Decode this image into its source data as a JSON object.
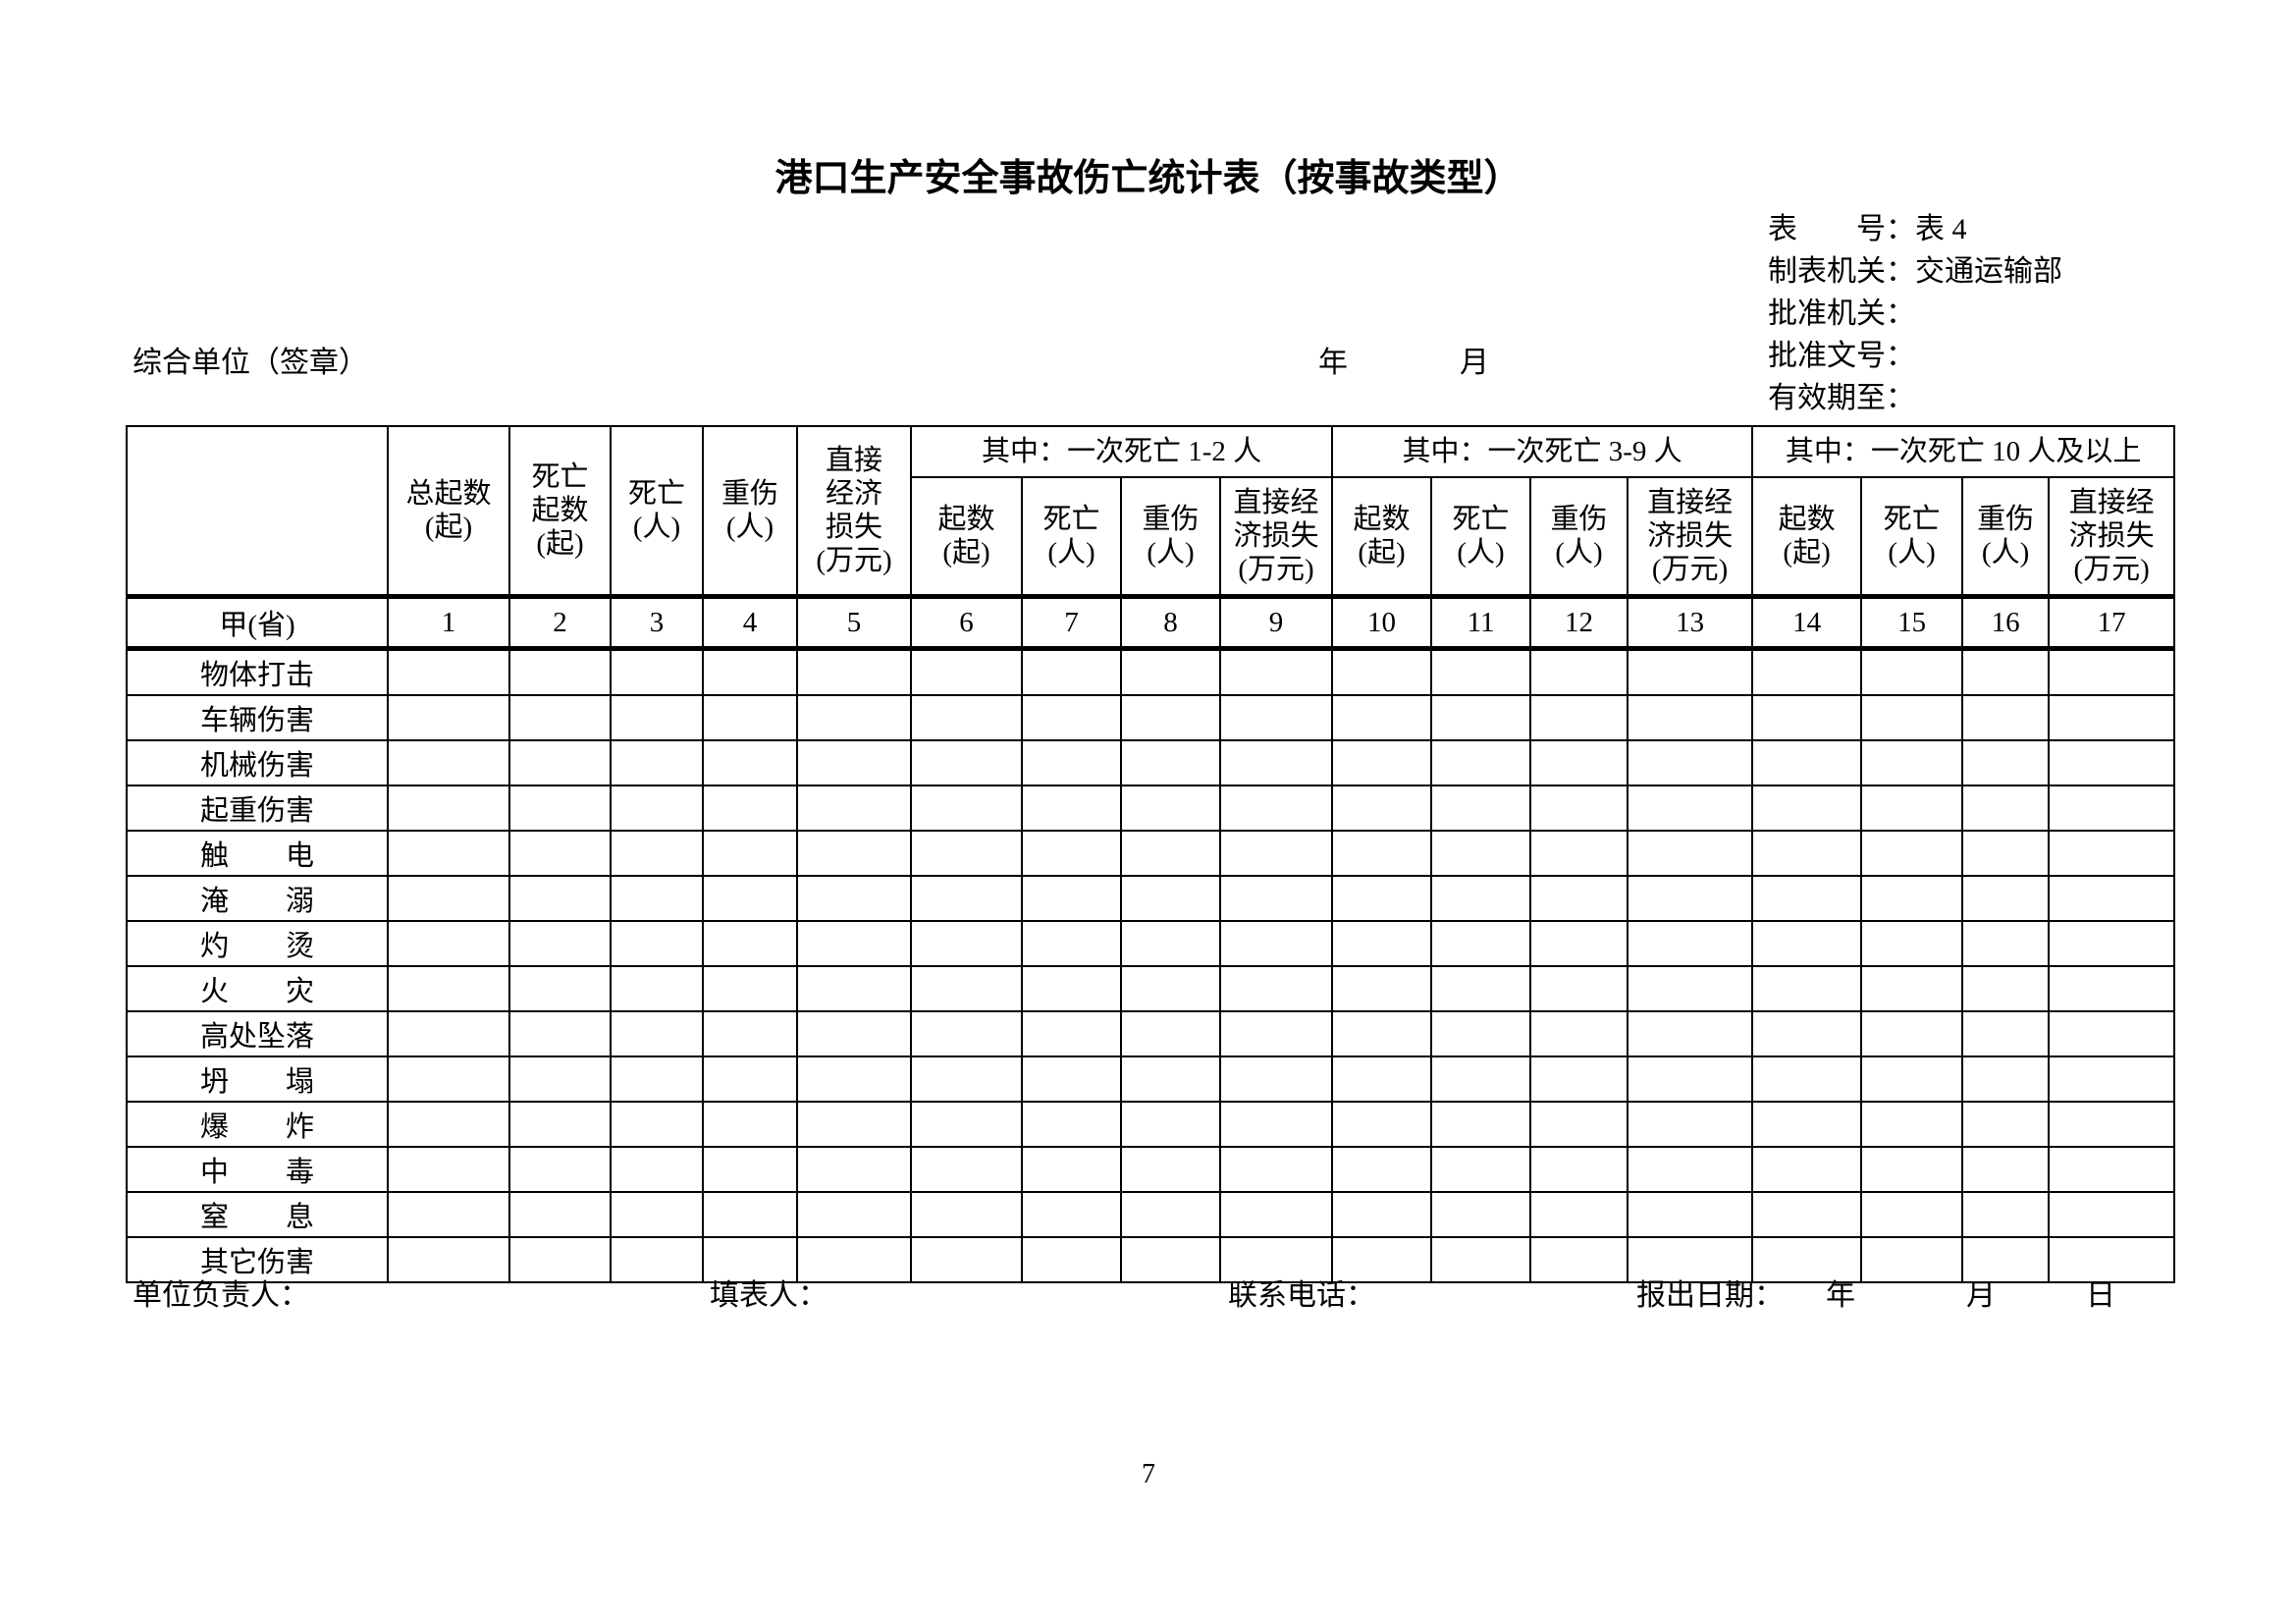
{
  "title": "港口生产安全事故伤亡统计表（按事故类型）",
  "meta": {
    "lines": [
      {
        "label": "表　　号：",
        "value": "表 4"
      },
      {
        "label": "制表机关：",
        "value": "交通运输部"
      },
      {
        "label": "批准机关：",
        "value": ""
      },
      {
        "label": "批准文号：",
        "value": ""
      },
      {
        "label": "有效期至：",
        "value": ""
      }
    ],
    "unit_label": "综合单位（签章）",
    "year_label": "年",
    "month_label": "月"
  },
  "table": {
    "flat_headers": [
      "总起数\n(起)",
      "死亡\n起数\n(起)",
      "死亡\n(人)",
      "重伤\n(人)",
      "直接\n经济\n损失\n(万元)"
    ],
    "groups": [
      {
        "label": "其中：一次死亡 1-2 人"
      },
      {
        "label": "其中：一次死亡 3-9 人"
      },
      {
        "label": "其中：一次死亡 10 人及以上"
      }
    ],
    "group_sub_headers": [
      "起数\n(起)",
      "死亡\n(人)",
      "重伤\n(人)",
      "直接经\n济损失\n(万元)"
    ],
    "index_label": "甲(省)",
    "index_numbers": [
      "1",
      "2",
      "3",
      "4",
      "5",
      "6",
      "7",
      "8",
      "9",
      "10",
      "11",
      "12",
      "13",
      "14",
      "15",
      "16",
      "17"
    ],
    "rows": [
      "物体打击",
      "车辆伤害",
      "机械伤害",
      "起重伤害",
      "触　　电",
      "淹　　溺",
      "灼　　烫",
      "火　　灾",
      "高处坠落",
      "坍　　塌",
      "爆　　炸",
      "中　　毒",
      "窒　　息",
      "其它伤害"
    ]
  },
  "footer": {
    "responsible_label": "单位负责人：",
    "filler_label": "填表人：",
    "phone_label": "联系电话：",
    "date_label": "报出日期：",
    "year_label": "年",
    "month_label": "月",
    "day_label": "日"
  },
  "page_number": "7"
}
